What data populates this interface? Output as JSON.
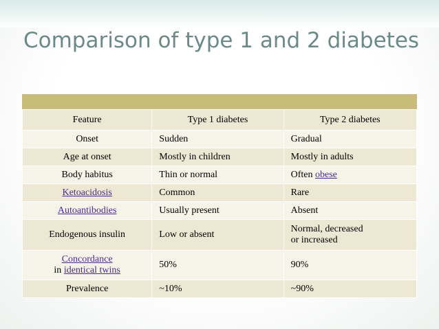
{
  "slide": {
    "title": "Comparison of type 1 and 2 diabetes"
  },
  "table": {
    "headers": [
      "Feature",
      "Type 1 diabetes",
      "Type 2 diabetes"
    ],
    "rows": [
      {
        "feature": "Onset",
        "type1": "Sudden",
        "type2": "Gradual"
      },
      {
        "feature": "Age at onset",
        "type1": "Mostly in children",
        "type2": "Mostly in adults"
      },
      {
        "feature": "Body habitus",
        "type1": "Thin or normal",
        "type2_prefix": "Often ",
        "type2_link": "obese"
      },
      {
        "feature": "Ketoacidosis",
        "type1": "Common",
        "type2": "Rare"
      },
      {
        "feature": "Autoantibodies",
        "type1": "Usually present",
        "type2": "Absent"
      },
      {
        "feature": "Endogenous insulin",
        "type1": "Low or absent",
        "type2_line1": "Normal, decreased",
        "type2_line2": "or increased"
      },
      {
        "feature_link1": "Concordance",
        "feature_prefix2": "in ",
        "feature_link2": "identical twins",
        "type1": "50%",
        "type2": "90%"
      },
      {
        "feature": "Prevalence",
        "type1": "~10%",
        "type2": "~90%"
      }
    ]
  },
  "colors": {
    "title": "#6b8a87",
    "header_bar": "#c9bc7b",
    "row_dark": "#ede8d3",
    "row_light": "#f6f3e8",
    "link": "#4b2b8f"
  }
}
